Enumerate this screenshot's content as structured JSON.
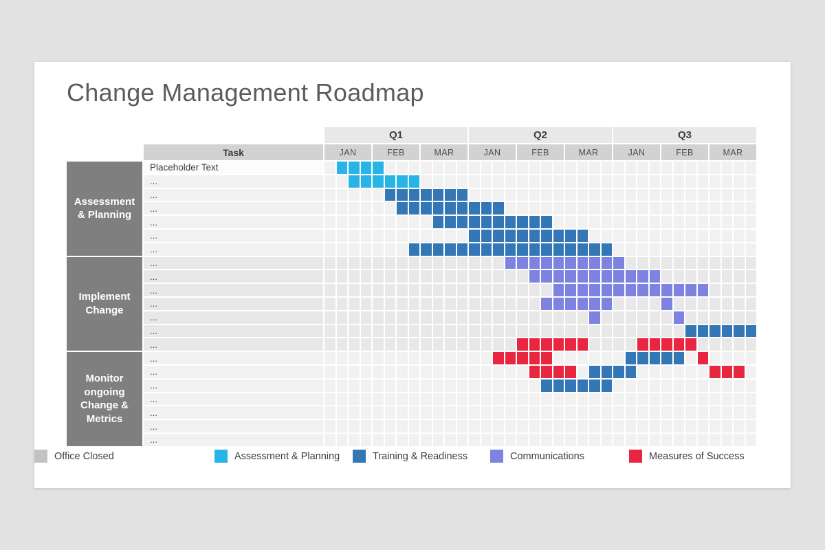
{
  "title": "Change Management Roadmap",
  "chart_data": {
    "type": "bar",
    "subtype": "gantt-roadmap",
    "title": "Change Management Roadmap",
    "task_header": "Task",
    "x_axis": {
      "quarters": [
        {
          "label": "Q1",
          "months": [
            "JAN",
            "FEB",
            "MAR"
          ]
        },
        {
          "label": "Q2",
          "months": [
            "JAN",
            "FEB",
            "MAR"
          ]
        },
        {
          "label": "Q3",
          "months": [
            "JAN",
            "FEB",
            "MAR"
          ]
        }
      ],
      "weeks_per_month": 4,
      "total_weeks": 36
    },
    "colors": {
      "assessment": "#29b4e8",
      "training": "#3377b6",
      "communications": "#7e82e0",
      "success": "#e8263f",
      "closed": "#c2c2c2"
    },
    "phases": [
      {
        "name": "Assessment & Planning",
        "tasks": [
          {
            "label": "Placeholder Text",
            "segments": [
              [
                2,
                5,
                "assessment"
              ]
            ]
          },
          {
            "label": "...",
            "segments": [
              [
                3,
                8,
                "assessment"
              ]
            ]
          },
          {
            "label": "...",
            "segments": [
              [
                6,
                12,
                "training"
              ]
            ]
          },
          {
            "label": "...",
            "segments": [
              [
                7,
                15,
                "training"
              ]
            ]
          },
          {
            "label": "...",
            "segments": [
              [
                10,
                19,
                "training"
              ]
            ]
          },
          {
            "label": "...",
            "segments": [
              [
                13,
                22,
                "training"
              ]
            ]
          },
          {
            "label": "...",
            "segments": [
              [
                8,
                24,
                "training"
              ]
            ]
          }
        ]
      },
      {
        "name": "Implement Change",
        "tasks": [
          {
            "label": "...",
            "segments": [
              [
                16,
                25,
                "communications"
              ]
            ]
          },
          {
            "label": "...",
            "segments": [
              [
                18,
                28,
                "communications"
              ]
            ]
          },
          {
            "label": "...",
            "segments": [
              [
                20,
                32,
                "communications"
              ]
            ]
          },
          {
            "label": "...",
            "segments": [
              [
                19,
                24,
                "communications"
              ],
              [
                29,
                29,
                "communications"
              ]
            ]
          },
          {
            "label": "...",
            "segments": [
              [
                23,
                23,
                "communications"
              ],
              [
                30,
                30,
                "communications"
              ]
            ]
          },
          {
            "label": "...",
            "segments": [
              [
                31,
                36,
                "training"
              ]
            ]
          },
          {
            "label": "...",
            "segments": [
              [
                17,
                22,
                "success"
              ],
              [
                27,
                31,
                "success"
              ]
            ]
          }
        ]
      },
      {
        "name": "Monitor ongoing Change & Metrics",
        "tasks": [
          {
            "label": "...",
            "segments": [
              [
                15,
                19,
                "success"
              ],
              [
                26,
                30,
                "training"
              ],
              [
                32,
                32,
                "success"
              ]
            ]
          },
          {
            "label": "...",
            "segments": [
              [
                18,
                21,
                "success"
              ],
              [
                23,
                26,
                "training"
              ],
              [
                33,
                35,
                "success"
              ]
            ]
          },
          {
            "label": "...",
            "segments": [
              [
                19,
                24,
                "training"
              ]
            ]
          },
          {
            "label": "...",
            "segments": []
          },
          {
            "label": "...",
            "segments": []
          },
          {
            "label": "...",
            "segments": []
          },
          {
            "label": "...",
            "segments": []
          }
        ]
      }
    ],
    "legend": [
      {
        "label": "Assessment & Planning",
        "key": "assessment"
      },
      {
        "label": "Training & Readiness",
        "key": "training"
      },
      {
        "label": "Communications",
        "key": "communications"
      },
      {
        "label": "Measures of Success",
        "key": "success"
      },
      {
        "label": "Office Closed",
        "key": "closed"
      }
    ]
  }
}
